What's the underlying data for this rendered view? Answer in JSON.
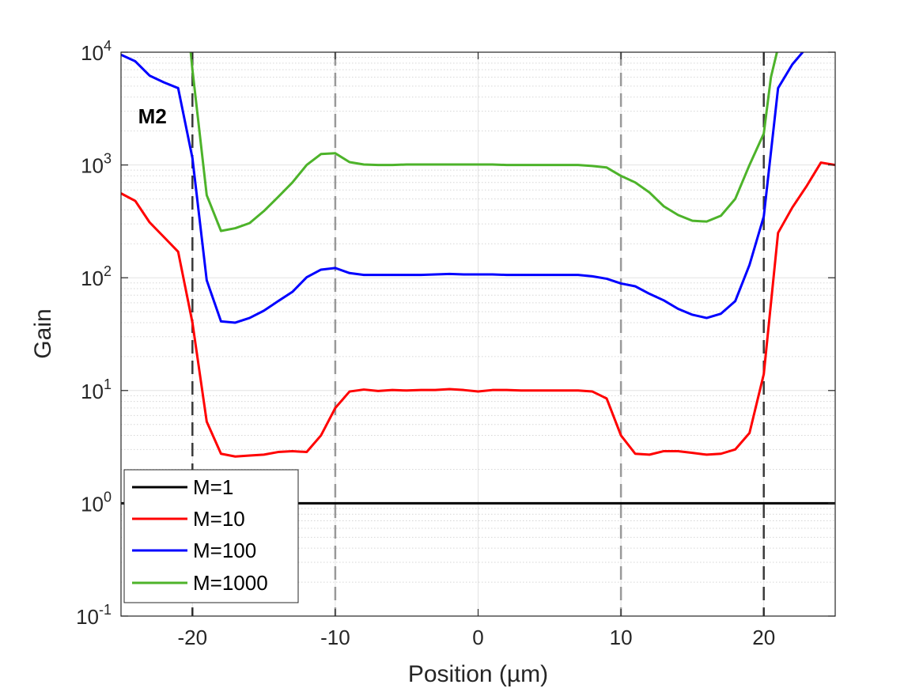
{
  "chart_data": {
    "type": "line",
    "title": "",
    "xlabel": "Position (µm)",
    "ylabel": "Gain",
    "xscale": "linear",
    "yscale": "log",
    "xlim": [
      -25,
      25
    ],
    "ylim": [
      0.1,
      10000
    ],
    "grid": true,
    "legend_location": "bottom-left",
    "xticks": [
      -20,
      -10,
      0,
      10,
      20
    ],
    "xtick_labels": [
      "-20",
      "-10",
      "0",
      "10",
      "20"
    ],
    "yticks": [
      {
        "value": 0.1,
        "base": "10",
        "exp": "-1"
      },
      {
        "value": 1,
        "base": "10",
        "exp": "0"
      },
      {
        "value": 10,
        "base": "10",
        "exp": "1"
      },
      {
        "value": 100,
        "base": "10",
        "exp": "2"
      },
      {
        "value": 1000,
        "base": "10",
        "exp": "3"
      },
      {
        "value": 10000,
        "base": "10",
        "exp": "4"
      }
    ],
    "vlines": [
      {
        "x": -20,
        "color": "#3a3a3a"
      },
      {
        "x": -10,
        "color": "#999999"
      },
      {
        "x": 10,
        "color": "#999999"
      },
      {
        "x": 20,
        "color": "#3a3a3a"
      }
    ],
    "annotations": [
      {
        "text": "M2",
        "x": -23.8,
        "y": 2700
      }
    ],
    "series": [
      {
        "name": "M=1",
        "color": "#000000",
        "x": [
          -25,
          25
        ],
        "y": [
          1,
          1
        ]
      },
      {
        "name": "M=10",
        "color": "#ff0000",
        "x": [
          -25,
          -24,
          -23,
          -22,
          -21,
          -20,
          -19,
          -18,
          -17,
          -16,
          -15,
          -14,
          -13,
          -12,
          -11,
          -10,
          -9,
          -8,
          -7,
          -6,
          -5,
          -4,
          -3,
          -2,
          -1,
          0,
          1,
          2,
          3,
          4,
          5,
          6,
          7,
          8,
          9,
          10,
          11,
          12,
          13,
          14,
          15,
          16,
          17,
          18,
          19,
          20,
          21,
          22,
          23,
          24,
          25
        ],
        "y": [
          560,
          480,
          310,
          230,
          170,
          40,
          5.3,
          2.75,
          2.6,
          2.65,
          2.7,
          2.85,
          2.9,
          2.85,
          4,
          7,
          9.8,
          10.2,
          9.9,
          10.1,
          10,
          10.1,
          10.1,
          10.3,
          10.1,
          9.8,
          10.1,
          10.1,
          10,
          10,
          10,
          10,
          10,
          9.8,
          8.5,
          4,
          2.75,
          2.7,
          2.9,
          2.9,
          2.8,
          2.7,
          2.75,
          3,
          4.2,
          14,
          250,
          420,
          650,
          1050,
          1000
        ]
      },
      {
        "name": "M=100",
        "color": "#0000ff",
        "x": [
          -25,
          -24,
          -23,
          -22,
          -21,
          -20,
          -19,
          -18,
          -17,
          -16,
          -15,
          -14,
          -13,
          -12,
          -11,
          -10,
          -9,
          -8,
          -7,
          -6,
          -5,
          -4,
          -3,
          -2,
          -1,
          0,
          1,
          2,
          3,
          4,
          5,
          6,
          7,
          8,
          9,
          10,
          11,
          12,
          13,
          14,
          15,
          16,
          17,
          18,
          19,
          20,
          21,
          22,
          23
        ],
        "y": [
          9500,
          8300,
          6200,
          5400,
          4800,
          1150,
          95,
          41,
          40,
          44,
          51,
          62,
          75,
          101,
          118,
          122,
          110,
          106,
          106,
          106,
          106,
          106,
          107,
          108,
          107,
          107,
          107,
          106,
          106,
          106,
          106,
          106,
          106,
          103,
          98,
          89,
          84,
          72,
          63,
          53,
          47,
          44,
          48,
          62,
          130,
          350,
          4800,
          7800,
          11000
        ]
      },
      {
        "name": "M=1000",
        "color": "#4db32a",
        "x": [
          -20.15,
          -20,
          -19,
          -18,
          -17,
          -16,
          -15,
          -14,
          -13,
          -12,
          -11,
          -10,
          -9,
          -8,
          -7,
          -6,
          -5,
          -4,
          -3,
          -2,
          -1,
          0,
          1,
          2,
          3,
          4,
          5,
          6,
          7,
          8,
          9,
          10,
          11,
          12,
          13,
          14,
          15,
          16,
          17,
          18,
          19,
          20,
          20.5,
          21
        ],
        "y": [
          11000,
          7000,
          540,
          260,
          275,
          305,
          390,
          520,
          700,
          1000,
          1250,
          1270,
          1060,
          1010,
          1000,
          1000,
          1010,
          1010,
          1010,
          1010,
          1010,
          1010,
          1010,
          1000,
          1000,
          1000,
          1000,
          1000,
          1000,
          980,
          950,
          800,
          700,
          570,
          430,
          360,
          320,
          315,
          355,
          500,
          1000,
          1900,
          6000,
          11000
        ]
      }
    ]
  }
}
